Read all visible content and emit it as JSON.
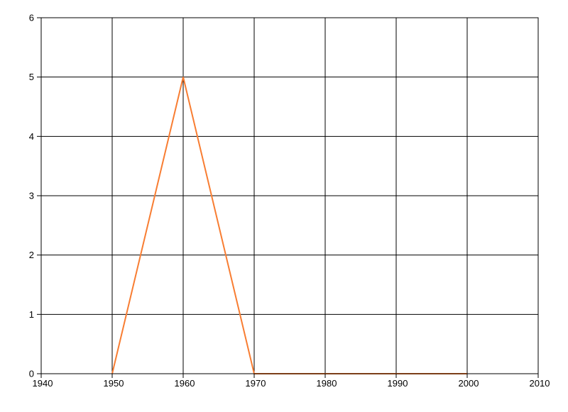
{
  "chart_data": {
    "type": "line",
    "title": "",
    "xlim": [
      1940,
      2010
    ],
    "ylim": [
      0,
      6
    ],
    "x_ticks": [
      1940,
      1950,
      1960,
      1970,
      1980,
      1990,
      2000,
      2010
    ],
    "x_tick_labels": [
      "1940",
      "1950",
      "1960",
      "1970",
      "1980",
      "1990",
      "2000",
      "2010"
    ],
    "y_ticks": [
      0,
      1,
      2,
      3,
      4,
      5,
      6
    ],
    "y_tick_labels": [
      "0",
      "1",
      "2",
      "3",
      "4",
      "5",
      "6"
    ],
    "grid": true,
    "legend": false,
    "series": [
      {
        "color": "#F87D32",
        "line_width": 2,
        "x": [
          1950,
          1960,
          1970,
          1980,
          1990,
          2000
        ],
        "y": [
          0,
          5,
          0,
          0,
          0,
          0
        ]
      }
    ],
    "colors": {
      "grid": "#000000",
      "axis_border": "#000000",
      "background": "#FFFFFF",
      "tick_label": "#000000"
    }
  }
}
